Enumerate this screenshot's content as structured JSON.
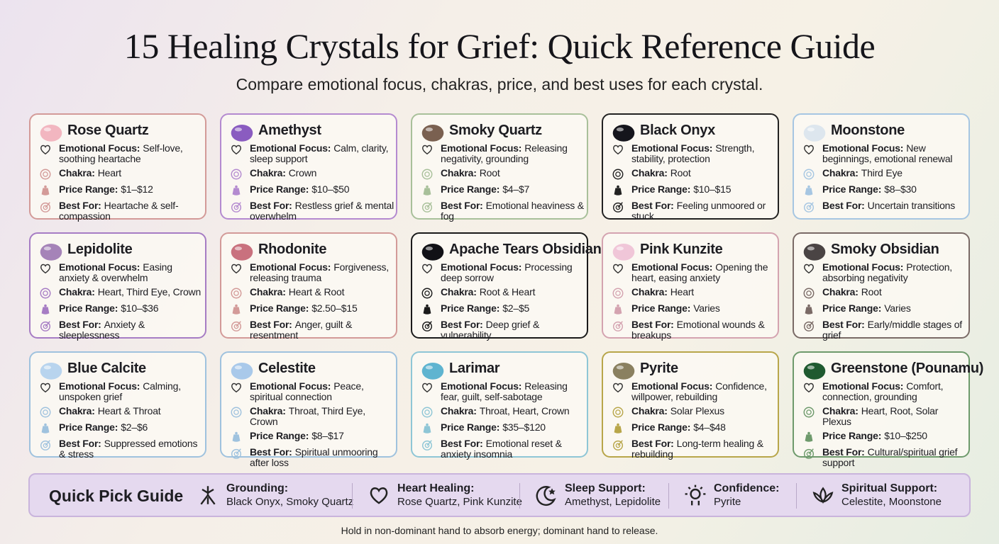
{
  "header": {
    "title": "15 Healing Crystals for Grief: Quick Reference Guide",
    "subtitle": "Compare emotional focus, chakras, price, and best uses for each crystal."
  },
  "field_labels": {
    "focus": "Emotional Focus:",
    "chakra": "Chakra:",
    "price": "Price Range:",
    "best": "Best For:"
  },
  "cards": [
    {
      "name": "Rose Quartz",
      "focus": "Self-love, soothing heartache",
      "chakra": "Heart",
      "price": "$1–$12",
      "best": "Heartache & self-compassion",
      "accent": "#d39a98",
      "gem": "#f2b6c0"
    },
    {
      "name": "Amethyst",
      "focus": "Calm, clarity, sleep support",
      "chakra": "Crown",
      "price": "$10–$50",
      "best": "Restless grief & mental overwhelm",
      "accent": "#b48ad0",
      "gem": "#8a5cc0"
    },
    {
      "name": "Smoky Quartz",
      "focus": "Releasing negativity, grounding",
      "chakra": "Root",
      "price": "$4–$7",
      "best": "Emotional heaviness & fog",
      "accent": "#a8c09a",
      "gem": "#7a6050"
    },
    {
      "name": "Black Onyx",
      "focus": "Strength, stability, protection",
      "chakra": "Root",
      "price": "$10–$15",
      "best": "Feeling unmoored or stuck",
      "accent": "#222222",
      "gem": "#15151c"
    },
    {
      "name": "Moonstone",
      "focus": "New beginnings, emotional renewal",
      "chakra": "Third Eye",
      "price": "$8–$30",
      "best": "Uncertain transitions",
      "accent": "#a6c6e2",
      "gem": "#dde6ee"
    },
    {
      "name": "Lepidolite",
      "focus": "Easing anxiety & overwhelm",
      "chakra": "Heart, Third Eye, Crown",
      "price": "$10–$36",
      "best": "Anxiety & sleeplessness",
      "accent": "#a67cc4",
      "gem": "#a583b8"
    },
    {
      "name": "Rhodonite",
      "focus": "Forgiveness, releasing trauma",
      "chakra": "Heart & Root",
      "price": "$2.50–$15",
      "best": "Anger, guilt & resentment",
      "accent": "#d39a98",
      "gem": "#c9717e"
    },
    {
      "name": "Apache Tears Obsidian",
      "focus": "Processing deep sorrow",
      "chakra": "Root & Heart",
      "price": "$2–$5",
      "best": "Deep grief & vulnerability",
      "accent": "#1a1a1a",
      "gem": "#111116"
    },
    {
      "name": "Pink Kunzite",
      "focus": "Opening the heart, easing anxiety",
      "chakra": "Heart",
      "price": "Varies",
      "best": "Emotional wounds & breakups",
      "accent": "#d4a3b0",
      "gem": "#f0c6d8"
    },
    {
      "name": "Smoky Obsidian",
      "focus": "Protection, absorbing negativity",
      "chakra": "Root",
      "price": "Varies",
      "best": "Early/middle stages of grief",
      "accent": "#7a6a66",
      "gem": "#4a4444"
    },
    {
      "name": "Blue Calcite",
      "focus": "Calming, unspoken grief",
      "chakra": "Heart & Throat",
      "price": "$2–$6",
      "best": "Suppressed emotions & stress",
      "accent": "#9fc2de",
      "gem": "#b8d4ee"
    },
    {
      "name": "Celestite",
      "focus": "Peace, spiritual connection",
      "chakra": "Throat, Third Eye, Crown",
      "price": "$8–$17",
      "best": "Spiritual unmooring after loss",
      "accent": "#9fc2de",
      "gem": "#a9c9ea"
    },
    {
      "name": "Larimar",
      "focus": "Releasing fear, guilt, self-sabotage",
      "chakra": "Throat, Heart, Crown",
      "price": "$35–$120",
      "best": "Emotional reset & anxiety insomnia",
      "accent": "#8ec6d6",
      "gem": "#5fb4d0"
    },
    {
      "name": "Pyrite",
      "focus": "Confidence, willpower, rebuilding",
      "chakra": "Solar Plexus",
      "price": "$4–$48",
      "best": "Long-term healing & rebuilding",
      "accent": "#b8a64a",
      "gem": "#8a8060"
    },
    {
      "name": "Greenstone (Pounamu)",
      "focus": "Comfort, connection, grounding",
      "chakra": "Heart, Root, Solar Plexus",
      "price": "$10–$250",
      "best": "Cultural/spiritual grief support",
      "accent": "#6e9a6c",
      "gem": "#1f5a30"
    }
  ],
  "quick_pick": {
    "title": "Quick Pick Guide",
    "items": [
      {
        "label": "Grounding:",
        "crystals": "Black Onyx, Smoky Quartz"
      },
      {
        "label": "Heart Healing:",
        "crystals": "Rose Quartz, Pink Kunzite"
      },
      {
        "label": "Sleep Support:",
        "crystals": "Amethyst, Lepidolite"
      },
      {
        "label": "Confidence:",
        "crystals": "Pyrite"
      },
      {
        "label": "Spiritual Support:",
        "crystals": "Celestite, Moonstone"
      }
    ]
  },
  "footer": {
    "note": "Hold in non-dominant hand to absorb energy; dominant hand to release."
  }
}
